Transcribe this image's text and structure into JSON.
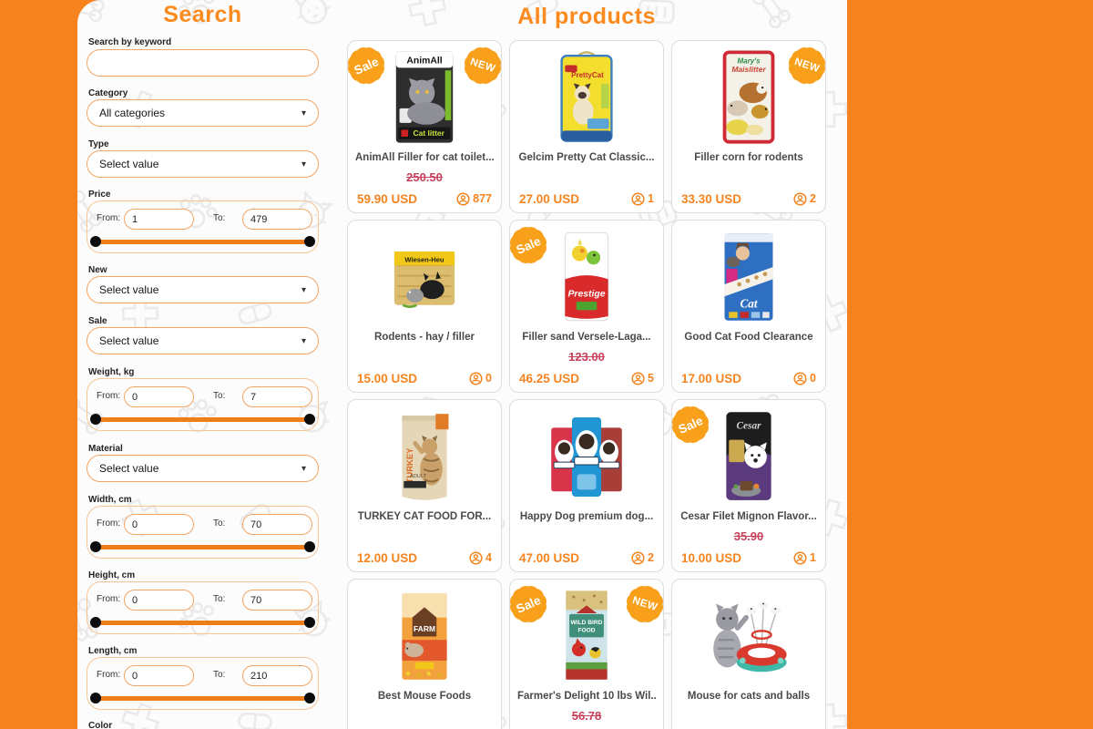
{
  "page": {
    "accent_orange": "#f6831e",
    "heading_orange": "#fb8b1e",
    "old_price_red": "#c7415a",
    "badge_orange": "#f9a01b"
  },
  "icons": {
    "chevron": "▾",
    "views": "person-in-circle",
    "pattern": [
      "bone",
      "paw",
      "cat-face",
      "medical-cross",
      "pill",
      "pet-carrier"
    ]
  },
  "sidebar": {
    "title": "Search",
    "keyword": {
      "label": "Search by keyword",
      "value": ""
    },
    "range_from_label": "From:",
    "range_to_label": "To:",
    "selects": [
      {
        "label": "Category",
        "value": "All categories"
      },
      {
        "label": "Type",
        "value": "Select value"
      },
      {
        "label": "New",
        "value": "Select value"
      },
      {
        "label": "Sale",
        "value": "Select value"
      },
      {
        "label": "Material",
        "value": "Select value"
      }
    ],
    "ranges": [
      {
        "label": "Price",
        "from": "1",
        "to": "479"
      },
      {
        "label": "Weight, kg",
        "from": "0",
        "to": "7"
      },
      {
        "label": "Width, cm",
        "from": "0",
        "to": "70"
      },
      {
        "label": "Height, cm",
        "from": "0",
        "to": "70"
      },
      {
        "label": "Length, cm",
        "from": "0",
        "to": "210"
      }
    ],
    "color_label": "Color"
  },
  "products": {
    "title": "All products",
    "badge_sale": "Sale",
    "badge_new": "NEW",
    "items": [
      {
        "title": "AnimAll Filler for cat toilet...",
        "old_price": "250.50",
        "price": "59.90 USD",
        "views": "877",
        "sale": true,
        "new": true,
        "image": "animall-cat-litter"
      },
      {
        "title": "Gelcim Pretty Cat Classic...",
        "price": "27.00 USD",
        "views": "1",
        "image": "pretty-cat-litter"
      },
      {
        "title": "Filler corn for rodents",
        "price": "33.30 USD",
        "views": "2",
        "new": true,
        "image": "maislitter-rodent-filler"
      },
      {
        "title": "Rodents - hay / filler",
        "price": "15.00 USD",
        "views": "0",
        "image": "rodent-hay-bale"
      },
      {
        "title": "Filler sand Versele-Laga...",
        "old_price": "123.00",
        "price": "46.25 USD",
        "views": "5",
        "sale": true,
        "image": "prestige-bird-sand"
      },
      {
        "title": "Good Cat Food Clearance",
        "price": "17.00 USD",
        "views": "0",
        "image": "purina-cat-chow"
      },
      {
        "title": "TURKEY CAT FOOD FOR...",
        "price": "12.00 USD",
        "views": "4",
        "image": "turkey-cat-food-pouch"
      },
      {
        "title": "Happy Dog premium dog...",
        "price": "47.00 USD",
        "views": "2",
        "image": "happy-dog-bags"
      },
      {
        "title": "Cesar Filet Mignon Flavor...",
        "old_price": "35.90",
        "price": "10.00 USD",
        "views": "1",
        "sale": true,
        "image": "cesar-dog-food"
      },
      {
        "title": "Best Mouse Foods",
        "image": "tiny-friends-farm-mouse-food"
      },
      {
        "title": "Farmer's Delight 10 lbs Wil...",
        "old_price": "56.78",
        "sale": true,
        "new": true,
        "image": "wild-bird-food"
      },
      {
        "title": "Mouse for cats and balls",
        "image": "cat-mouse-ball-toy"
      }
    ]
  }
}
